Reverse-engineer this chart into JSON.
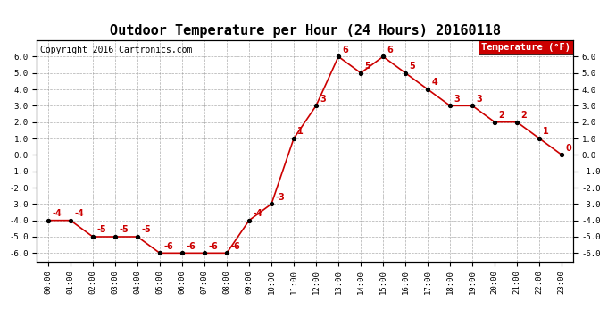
{
  "title": "Outdoor Temperature per Hour (24 Hours) 20160118",
  "copyright": "Copyright 2016 Cartronics.com",
  "legend_label": "Temperature (°F)",
  "hours": [
    "00:00",
    "01:00",
    "02:00",
    "03:00",
    "04:00",
    "05:00",
    "06:00",
    "07:00",
    "08:00",
    "09:00",
    "10:00",
    "11:00",
    "12:00",
    "13:00",
    "14:00",
    "15:00",
    "16:00",
    "17:00",
    "18:00",
    "19:00",
    "20:00",
    "21:00",
    "22:00",
    "23:00"
  ],
  "temps": [
    -4,
    -4,
    -5,
    -5,
    -5,
    -6,
    -6,
    -6,
    -6,
    -4,
    -3,
    1,
    3,
    6,
    5,
    6,
    5,
    4,
    3,
    3,
    2,
    2,
    1,
    0
  ],
  "ylim": [
    -6.5,
    7.0
  ],
  "yticks": [
    -6.0,
    -5.0,
    -4.0,
    -3.0,
    -2.0,
    -1.0,
    0.0,
    1.0,
    2.0,
    3.0,
    4.0,
    5.0,
    6.0
  ],
  "line_color": "#cc0000",
  "marker_color": "#000000",
  "label_color": "#cc0000",
  "background_color": "#ffffff",
  "grid_color": "#999999",
  "legend_bg": "#cc0000",
  "legend_text_color": "#ffffff",
  "title_fontsize": 11,
  "copyright_fontsize": 7,
  "label_fontsize": 7,
  "tick_fontsize": 6.5
}
